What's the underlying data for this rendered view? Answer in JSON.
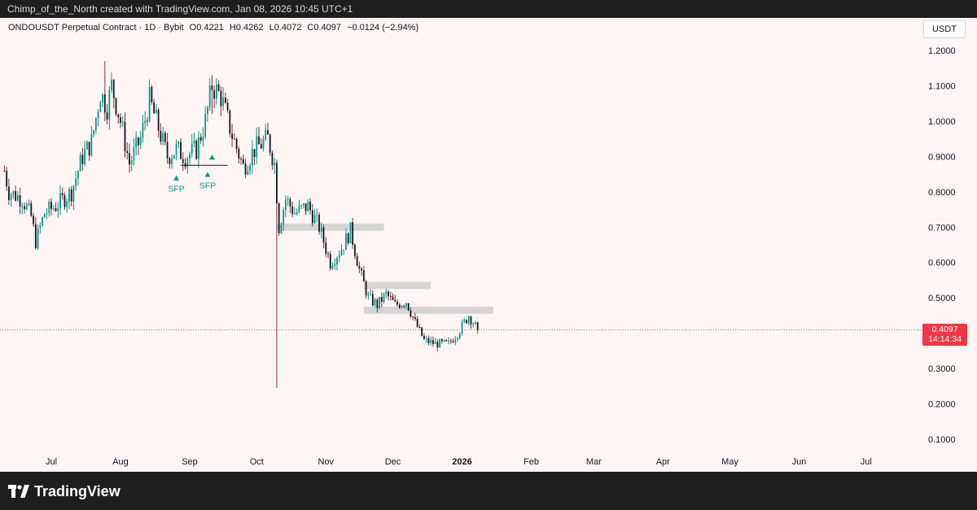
{
  "header": {
    "attribution": "Chimp_of_the_North created with TradingView.com, Jan 08, 2026 10:45 UTC+1"
  },
  "legend": {
    "symbol": "ONDOUSDT Perpetual Contract · 1D · Bybit",
    "open": "O0.4221",
    "high": "H0.4262",
    "low": "L0.4072",
    "close": "C0.4097",
    "change": "−0.0124 (−2.94%)"
  },
  "currency": "USDT",
  "last_price": {
    "value": "0.4097",
    "countdown": "14:14:34",
    "color": "#f23645"
  },
  "branding": {
    "name": "TradingView"
  },
  "annotations": [
    {
      "text": "SFP"
    },
    {
      "text": "SFP"
    }
  ],
  "colors": {
    "up": "#089981",
    "down": "#131722",
    "down_wick": "#8b2e3c",
    "zone": "#cfcfcf",
    "background": "#fdf4f4"
  },
  "chart_data": {
    "type": "candlestick",
    "x_labels": [
      "Jul",
      "Aug",
      "Sep",
      "Oct",
      "Nov",
      "Dec",
      "2026",
      "Feb",
      "Mar",
      "Apr",
      "May",
      "Jun",
      "Jul"
    ],
    "y_ticks": [
      "1.2000",
      "1.1000",
      "1.0000",
      "0.9000",
      "0.8000",
      "0.7000",
      "0.6000",
      "0.5000",
      "0.4000",
      "0.3000",
      "0.2000",
      "0.1000"
    ],
    "ylim": [
      0.05,
      1.28
    ],
    "last_close": 0.4097,
    "price_path": [
      {
        "date": "2025-06-10",
        "price": 0.86
      },
      {
        "date": "2025-06-12",
        "price": 0.8
      },
      {
        "date": "2025-06-18",
        "price": 0.78
      },
      {
        "date": "2025-06-22",
        "price": 0.73
      },
      {
        "date": "2025-06-24",
        "price": 0.66
      },
      {
        "date": "2025-06-28",
        "price": 0.74
      },
      {
        "date": "2025-07-03",
        "price": 0.76
      },
      {
        "date": "2025-07-10",
        "price": 0.8
      },
      {
        "date": "2025-07-15",
        "price": 0.9
      },
      {
        "date": "2025-07-19",
        "price": 0.94
      },
      {
        "date": "2025-07-23",
        "price": 1.08
      },
      {
        "date": "2025-07-26",
        "price": 1.04
      },
      {
        "date": "2025-07-28",
        "price": 1.1
      },
      {
        "date": "2025-08-01",
        "price": 1.0
      },
      {
        "date": "2025-08-05",
        "price": 0.88
      },
      {
        "date": "2025-08-10",
        "price": 0.95
      },
      {
        "date": "2025-08-14",
        "price": 1.06
      },
      {
        "date": "2025-08-18",
        "price": 0.98
      },
      {
        "date": "2025-08-22",
        "price": 0.9
      },
      {
        "date": "2025-08-26",
        "price": 0.92
      },
      {
        "date": "2025-08-30",
        "price": 0.9
      },
      {
        "date": "2025-09-04",
        "price": 0.92
      },
      {
        "date": "2025-09-08",
        "price": 1.0
      },
      {
        "date": "2025-09-11",
        "price": 1.1
      },
      {
        "date": "2025-09-15",
        "price": 1.07
      },
      {
        "date": "2025-09-20",
        "price": 0.96
      },
      {
        "date": "2025-09-25",
        "price": 0.87
      },
      {
        "date": "2025-09-30",
        "price": 0.92
      },
      {
        "date": "2025-10-06",
        "price": 0.95
      },
      {
        "date": "2025-10-09",
        "price": 0.88
      },
      {
        "date": "2025-10-11",
        "price": 0.7
      },
      {
        "date": "2025-10-14",
        "price": 0.78
      },
      {
        "date": "2025-10-18",
        "price": 0.74
      },
      {
        "date": "2025-10-24",
        "price": 0.76
      },
      {
        "date": "2025-10-29",
        "price": 0.7
      },
      {
        "date": "2025-11-03",
        "price": 0.6
      },
      {
        "date": "2025-11-08",
        "price": 0.64
      },
      {
        "date": "2025-11-12",
        "price": 0.69
      },
      {
        "date": "2025-11-16",
        "price": 0.58
      },
      {
        "date": "2025-11-20",
        "price": 0.5
      },
      {
        "date": "2025-11-24",
        "price": 0.48
      },
      {
        "date": "2025-11-28",
        "price": 0.51
      },
      {
        "date": "2025-12-02",
        "price": 0.48
      },
      {
        "date": "2025-12-07",
        "price": 0.49
      },
      {
        "date": "2025-12-11",
        "price": 0.43
      },
      {
        "date": "2025-12-15",
        "price": 0.38
      },
      {
        "date": "2025-12-20",
        "price": 0.37
      },
      {
        "date": "2025-12-26",
        "price": 0.37
      },
      {
        "date": "2025-12-30",
        "price": 0.4
      },
      {
        "date": "2026-01-04",
        "price": 0.45
      },
      {
        "date": "2026-01-06",
        "price": 0.43
      },
      {
        "date": "2026-01-08",
        "price": 0.41
      }
    ],
    "wicks": [
      {
        "date": "2025-10-10",
        "low": 0.245,
        "high": 0.82
      },
      {
        "date": "2025-07-25",
        "low": 1.0,
        "high": 1.17
      },
      {
        "date": "2025-09-11",
        "low": 1.02,
        "high": 1.13
      }
    ],
    "zones": [
      {
        "start": "2025-10-10",
        "end": "2025-11-27",
        "low": 0.69,
        "high": 0.71
      },
      {
        "start": "2025-11-18",
        "end": "2025-12-18",
        "low": 0.525,
        "high": 0.545
      },
      {
        "start": "2025-11-18",
        "end": "2026-01-15",
        "low": 0.455,
        "high": 0.475
      }
    ],
    "sfp": [
      {
        "date": "2025-08-26",
        "level": 0.86,
        "label_index": 0
      },
      {
        "date": "2025-09-09",
        "level": 0.87,
        "label_index": 1
      }
    ],
    "support_line": {
      "start": "2025-08-28",
      "end": "2025-09-18",
      "price": 0.875
    }
  }
}
